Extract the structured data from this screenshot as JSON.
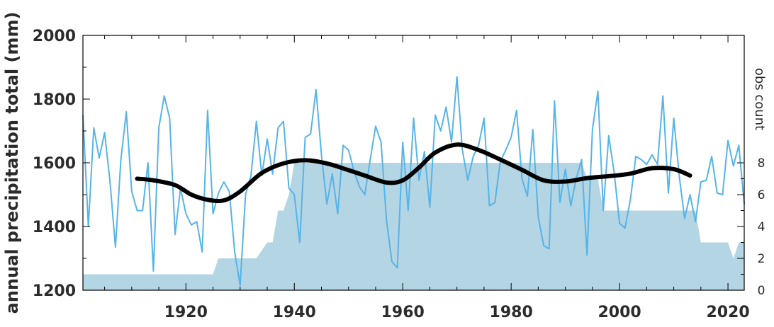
{
  "chart_data": {
    "type": "line",
    "title": "",
    "ylabel": "annual precipitation total (mm)",
    "y2label": "obs count",
    "xlim": [
      1901,
      2023
    ],
    "ylim": [
      1200,
      2000
    ],
    "y2lim": [
      0,
      16
    ],
    "x_ticks": [
      1920,
      1940,
      1960,
      1980,
      2000,
      2020
    ],
    "y_ticks": [
      1200,
      1400,
      1600,
      1800,
      2000
    ],
    "y2_ticks": [
      0,
      2,
      4,
      6,
      8
    ],
    "grid": false,
    "colors": {
      "annual": "#56b4e9",
      "smooth": "#000000",
      "obs_fill": "#b4d5e3"
    },
    "series": [
      {
        "kind": "area",
        "axis": "right",
        "x": [
          1901,
          1925,
          1926,
          1933,
          1934,
          1935,
          1936,
          1937,
          1938,
          1939,
          1940,
          1941,
          1993,
          1994,
          1996,
          1997,
          2013,
          2014,
          2015,
          2016,
          2019,
          2020,
          2021,
          2022,
          2023
        ],
        "values": [
          1,
          1,
          2,
          2,
          2.5,
          3,
          3,
          5,
          5,
          6,
          8,
          8,
          8,
          7,
          7,
          5,
          5,
          5,
          3,
          3,
          3,
          3,
          2,
          3,
          3
        ]
      },
      {
        "kind": "line",
        "axis": "left",
        "x": [
          1901,
          1902,
          1903,
          1904,
          1905,
          1906,
          1907,
          1908,
          1909,
          1910,
          1911,
          1912,
          1913,
          1914,
          1915,
          1916,
          1917,
          1918,
          1919,
          1920,
          1921,
          1922,
          1923,
          1924,
          1925,
          1926,
          1927,
          1928,
          1929,
          1930,
          1931,
          1932,
          1933,
          1934,
          1935,
          1936,
          1937,
          1938,
          1939,
          1940,
          1941,
          1942,
          1943,
          1944,
          1945,
          1946,
          1947,
          1948,
          1949,
          1950,
          1951,
          1952,
          1953,
          1954,
          1955,
          1956,
          1957,
          1958,
          1959,
          1960,
          1961,
          1962,
          1963,
          1964,
          1965,
          1966,
          1967,
          1968,
          1969,
          1970,
          1971,
          1972,
          1973,
          1974,
          1975,
          1976,
          1977,
          1978,
          1979,
          1980,
          1981,
          1982,
          1983,
          1984,
          1985,
          1986,
          1987,
          1988,
          1989,
          1990,
          1991,
          1992,
          1993,
          1994,
          1995,
          1996,
          1997,
          1998,
          1999,
          2000,
          2001,
          2002,
          2003,
          2004,
          2005,
          2006,
          2007,
          2008,
          2009,
          2010,
          2011,
          2012,
          2013,
          2014,
          2015,
          2016,
          2017,
          2018,
          2019,
          2020,
          2021,
          2022,
          2023
        ],
        "values": [
          1750,
          1400,
          1710,
          1615,
          1695,
          1540,
          1335,
          1610,
          1760,
          1510,
          1450,
          1450,
          1600,
          1260,
          1710,
          1810,
          1740,
          1375,
          1520,
          1440,
          1405,
          1415,
          1320,
          1765,
          1440,
          1505,
          1540,
          1510,
          1320,
          1215,
          1500,
          1560,
          1730,
          1560,
          1675,
          1565,
          1710,
          1730,
          1520,
          1500,
          1350,
          1680,
          1690,
          1830,
          1625,
          1470,
          1565,
          1440,
          1655,
          1640,
          1575,
          1525,
          1500,
          1610,
          1715,
          1665,
          1420,
          1290,
          1270,
          1665,
          1450,
          1740,
          1545,
          1635,
          1460,
          1750,
          1700,
          1775,
          1665,
          1870,
          1640,
          1545,
          1620,
          1655,
          1740,
          1465,
          1475,
          1605,
          1640,
          1680,
          1765,
          1550,
          1495,
          1705,
          1430,
          1340,
          1330,
          1795,
          1475,
          1580,
          1465,
          1550,
          1610,
          1310,
          1705,
          1825,
          1450,
          1685,
          1570,
          1410,
          1395,
          1485,
          1620,
          1610,
          1595,
          1625,
          1595,
          1810,
          1505,
          1740,
          1560,
          1425,
          1500,
          1415,
          1540,
          1545,
          1620,
          1505,
          1500,
          1670,
          1590,
          1655,
          1470
        ]
      },
      {
        "kind": "line",
        "axis": "left",
        "x": [
          1911,
          1914,
          1918,
          1921,
          1924,
          1927,
          1930,
          1934,
          1938,
          1942,
          1946,
          1950,
          1953,
          1957,
          1960,
          1963,
          1966,
          1970,
          1974,
          1978,
          1982,
          1986,
          1990,
          1994,
          1998,
          2002,
          2006,
          2010,
          2013
        ],
        "values": [
          1550,
          1545,
          1530,
          1500,
          1484,
          1482,
          1510,
          1568,
          1598,
          1608,
          1598,
          1577,
          1560,
          1538,
          1545,
          1585,
          1632,
          1657,
          1640,
          1610,
          1578,
          1545,
          1541,
          1552,
          1558,
          1566,
          1583,
          1580,
          1560
        ]
      }
    ]
  }
}
